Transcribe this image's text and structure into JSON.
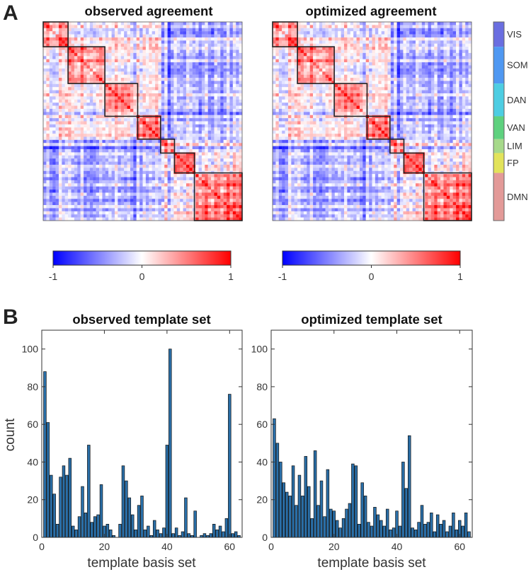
{
  "panel_labels": {
    "a": "A",
    "b": "B"
  },
  "chart_data": [
    {
      "type": "heatmap",
      "title": "observed agreement",
      "colorbar": {
        "min": -1,
        "max": 1,
        "ticks": [
          "-1",
          "0",
          "1"
        ],
        "low_color": "#0000ff",
        "mid_color": "#ffffff",
        "high_color": "#ff0000"
      },
      "blocks": [
        {
          "network": "VIS",
          "start": 0.0,
          "end": 0.125
        },
        {
          "network": "SOM",
          "start": 0.125,
          "end": 0.31
        },
        {
          "network": "DAN",
          "start": 0.31,
          "end": 0.475
        },
        {
          "network": "VAN",
          "start": 0.475,
          "end": 0.59
        },
        {
          "network": "LIM",
          "start": 0.59,
          "end": 0.66
        },
        {
          "network": "FP",
          "start": 0.66,
          "end": 0.76
        },
        {
          "network": "DMN",
          "start": 0.76,
          "end": 1.0
        }
      ]
    },
    {
      "type": "heatmap",
      "title": "optimized agreement",
      "colorbar": {
        "min": -1,
        "max": 1,
        "ticks": [
          "-1",
          "0",
          "1"
        ],
        "low_color": "#0000ff",
        "mid_color": "#ffffff",
        "high_color": "#ff0000"
      },
      "blocks": [
        {
          "network": "VIS",
          "start": 0.0,
          "end": 0.125
        },
        {
          "network": "SOM",
          "start": 0.125,
          "end": 0.31
        },
        {
          "network": "DAN",
          "start": 0.31,
          "end": 0.475
        },
        {
          "network": "VAN",
          "start": 0.475,
          "end": 0.59
        },
        {
          "network": "LIM",
          "start": 0.59,
          "end": 0.66
        },
        {
          "network": "FP",
          "start": 0.66,
          "end": 0.76
        },
        {
          "network": "DMN",
          "start": 0.76,
          "end": 1.0
        }
      ]
    },
    {
      "type": "bar",
      "title": "observed template set",
      "xlabel": "template basis set",
      "ylabel": "count",
      "xlim": [
        0,
        64
      ],
      "ylim": [
        0,
        110
      ],
      "xticks": [
        0,
        20,
        40,
        60
      ],
      "yticks": [
        0,
        20,
        40,
        60,
        80,
        100
      ],
      "bar_color": "#2a6fa8",
      "x": [
        1,
        2,
        3,
        4,
        5,
        6,
        7,
        8,
        9,
        10,
        11,
        12,
        13,
        14,
        15,
        16,
        17,
        18,
        19,
        20,
        21,
        22,
        23,
        24,
        25,
        26,
        27,
        28,
        29,
        30,
        31,
        32,
        33,
        34,
        35,
        36,
        37,
        38,
        39,
        40,
        41,
        42,
        43,
        44,
        45,
        46,
        47,
        48,
        49,
        50,
        51,
        52,
        53,
        54,
        55,
        56,
        57,
        58,
        59,
        60,
        61,
        62,
        63
      ],
      "values": [
        88,
        61,
        33,
        23,
        7,
        32,
        38,
        33,
        42,
        6,
        4,
        11,
        27,
        13,
        49,
        8,
        11,
        12,
        28,
        6,
        7,
        4,
        1,
        0,
        7,
        38,
        30,
        21,
        12,
        4,
        17,
        22,
        4,
        6,
        1,
        9,
        4,
        2,
        5,
        49,
        100,
        2,
        5,
        1,
        3,
        21,
        2,
        1,
        14,
        0,
        1,
        2,
        1,
        2,
        7,
        4,
        6,
        3,
        10,
        76,
        2,
        3,
        1
      ]
    },
    {
      "type": "bar",
      "title": "optimized template set",
      "xlabel": "template basis set",
      "ylabel": "",
      "xlim": [
        0,
        64
      ],
      "ylim": [
        0,
        110
      ],
      "xticks": [
        0,
        20,
        40,
        60
      ],
      "yticks": [
        0,
        20,
        40,
        60,
        80,
        100
      ],
      "bar_color": "#2a6fa8",
      "x": [
        1,
        2,
        3,
        4,
        5,
        6,
        7,
        8,
        9,
        10,
        11,
        12,
        13,
        14,
        15,
        16,
        17,
        18,
        19,
        20,
        21,
        22,
        23,
        24,
        25,
        26,
        27,
        28,
        29,
        30,
        31,
        32,
        33,
        34,
        35,
        36,
        37,
        38,
        39,
        40,
        41,
        42,
        43,
        44,
        45,
        46,
        47,
        48,
        49,
        50,
        51,
        52,
        53,
        54,
        55,
        56,
        57,
        58,
        59,
        60,
        61,
        62,
        63
      ],
      "values": [
        63,
        50,
        40,
        29,
        24,
        22,
        38,
        17,
        33,
        22,
        43,
        27,
        10,
        46,
        17,
        30,
        11,
        36,
        15,
        14,
        9,
        5,
        10,
        15,
        18,
        39,
        38,
        7,
        29,
        22,
        8,
        6,
        16,
        12,
        9,
        6,
        15,
        4,
        5,
        14,
        6,
        40,
        26,
        54,
        5,
        4,
        8,
        17,
        7,
        8,
        13,
        3,
        12,
        7,
        9,
        3,
        6,
        13,
        4,
        9,
        6,
        13,
        3
      ]
    }
  ],
  "networks": [
    {
      "name": "VIS",
      "color": "#6a6ee0",
      "start": 0.0,
      "end": 0.125
    },
    {
      "name": "SOM",
      "color": "#4f98f2",
      "start": 0.125,
      "end": 0.31
    },
    {
      "name": "DAN",
      "color": "#4dcde2",
      "start": 0.31,
      "end": 0.475
    },
    {
      "name": "VAN",
      "color": "#5ed17e",
      "start": 0.475,
      "end": 0.59
    },
    {
      "name": "LIM",
      "color": "#a6d98a",
      "start": 0.59,
      "end": 0.66
    },
    {
      "name": "FP",
      "color": "#e2e35a",
      "start": 0.66,
      "end": 0.76
    },
    {
      "name": "DMN",
      "color": "#e39a98",
      "start": 0.76,
      "end": 1.0
    }
  ]
}
